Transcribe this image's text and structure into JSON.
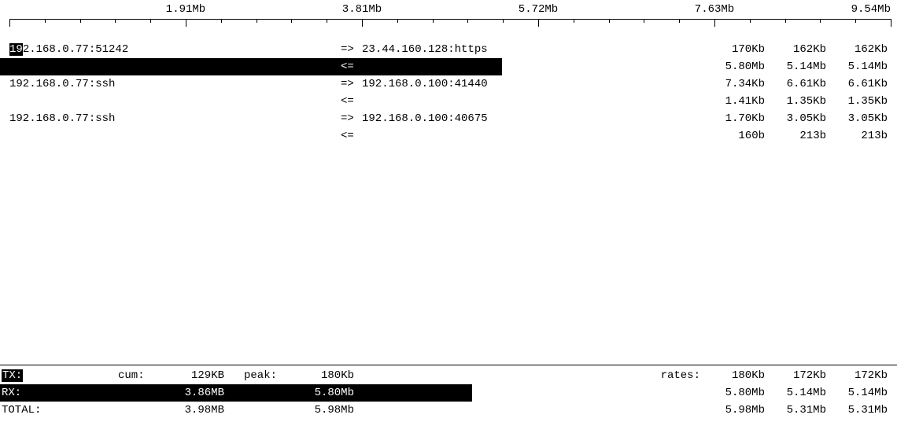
{
  "scale": {
    "labels": [
      "1.91Mb",
      "3.81Mb",
      "5.72Mb",
      "7.63Mb",
      "9.54Mb"
    ],
    "label_positions_pct": [
      20,
      40,
      60,
      80,
      100
    ]
  },
  "connections": [
    {
      "src": "192.168.0.77:51242",
      "src_hl_prefix": "19",
      "src_rest": "2.168.0.77:51242",
      "out": {
        "arrow": "=>",
        "dst": "23.44.160.128:https",
        "r1": "170Kb",
        "r2": "162Kb",
        "r3": "162Kb"
      },
      "in": {
        "arrow": "<=",
        "dst": "",
        "r1": "5.80Mb",
        "r2": "5.14Mb",
        "r3": "5.14Mb",
        "bar_pct": 56
      }
    },
    {
      "src": "192.168.0.77:ssh",
      "out": {
        "arrow": "=>",
        "dst": "192.168.0.100:41440",
        "r1": "7.34Kb",
        "r2": "6.61Kb",
        "r3": "6.61Kb"
      },
      "in": {
        "arrow": "<=",
        "dst": "",
        "r1": "1.41Kb",
        "r2": "1.35Kb",
        "r3": "1.35Kb"
      }
    },
    {
      "src": "192.168.0.77:ssh",
      "out": {
        "arrow": "=>",
        "dst": "192.168.0.100:40675",
        "r1": "1.70Kb",
        "r2": "3.05Kb",
        "r3": "3.05Kb"
      },
      "in": {
        "arrow": "<=",
        "dst": "",
        "r1": "160b",
        "r2": "213b",
        "r3": "213b"
      }
    }
  ],
  "summary": {
    "cum_label": "cum:",
    "peak_label": "peak:",
    "rates_label": "rates:",
    "tx": {
      "label": "TX:",
      "cum": "129KB",
      "peak": "180Kb",
      "r1": "180Kb",
      "r2": "172Kb",
      "r3": "172Kb"
    },
    "rx": {
      "label": "RX:",
      "cum": "3.86MB",
      "peak": "5.80Mb",
      "r1": "5.80Mb",
      "r2": "5.14Mb",
      "r3": "5.14Mb"
    },
    "total": {
      "label": "TOTAL:",
      "cum": "3.98MB",
      "peak": "5.98Mb",
      "r1": "5.98Mb",
      "r2": "5.31Mb",
      "r3": "5.31Mb"
    }
  }
}
